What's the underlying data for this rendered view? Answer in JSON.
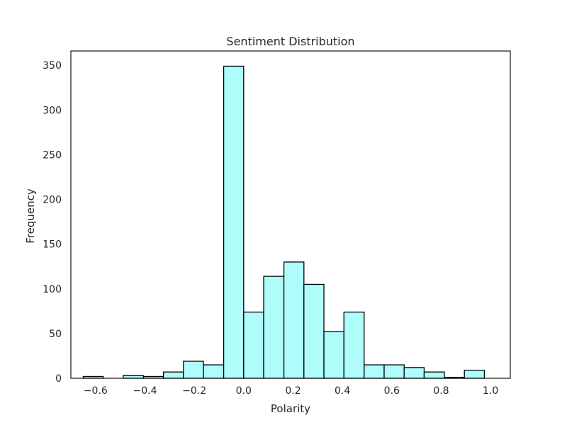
{
  "chart_data": {
    "type": "bar",
    "title": "Sentiment Distribution",
    "xlabel": "Polarity",
    "ylabel": "Frequency",
    "xlim": [
      -0.7,
      1.08
    ],
    "ylim": [
      0,
      366
    ],
    "xticks": [
      "−0.6",
      "−0.4",
      "−0.2",
      "0.0",
      "0.2",
      "0.4",
      "0.6",
      "0.8",
      "1.0"
    ],
    "xtick_values": [
      -0.6,
      -0.4,
      -0.2,
      0.0,
      0.2,
      0.4,
      0.6,
      0.8,
      1.0
    ],
    "yticks": [
      "0",
      "50",
      "100",
      "150",
      "200",
      "250",
      "300",
      "350"
    ],
    "ytick_values": [
      0,
      50,
      100,
      150,
      200,
      250,
      300,
      350
    ],
    "bin_edges": [
      -0.65,
      -0.569,
      -0.488,
      -0.406,
      -0.325,
      -0.244,
      -0.163,
      -0.081,
      0.0,
      0.081,
      0.163,
      0.244,
      0.325,
      0.406,
      0.488,
      0.569,
      0.65,
      0.731,
      0.813,
      0.894,
      0.975
    ],
    "values": [
      2,
      0,
      3,
      2,
      7,
      19,
      15,
      349,
      74,
      114,
      130,
      105,
      52,
      74,
      15,
      15,
      12,
      7,
      1,
      9
    ],
    "bar_color": "#aefdfa",
    "edge_color": "#000000",
    "grid": false
  }
}
